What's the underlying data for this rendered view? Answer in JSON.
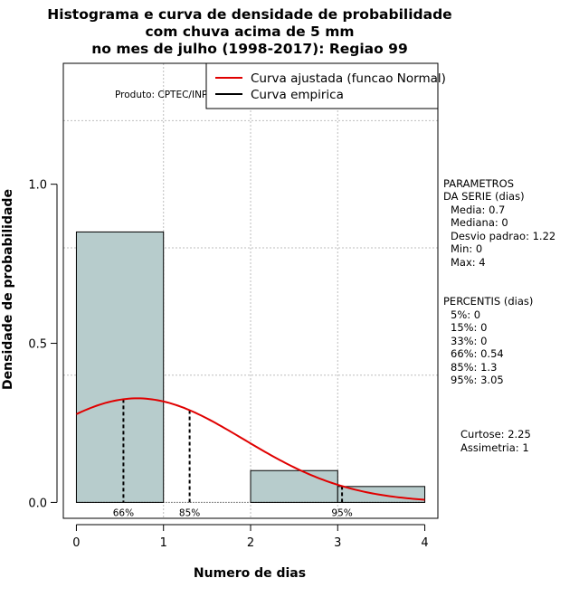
{
  "chart_data": {
    "type": "bar",
    "title": [
      "Histograma e curva de densidade de probabilidade",
      "com chuva acima de 5 mm",
      "no mes de julho (1998-2017): Regiao 99"
    ],
    "xlabel": "Numero de dias",
    "ylabel": "Densidade de probabilidade",
    "xlim": [
      -0.15,
      4.15
    ],
    "ylim": [
      -0.05,
      1.38
    ],
    "x_ticks": [
      0,
      1,
      2,
      3,
      4
    ],
    "x_tick_labels": [
      "0",
      "1",
      "2",
      "3",
      "4"
    ],
    "y_ticks": [
      0.0,
      0.5,
      1.0
    ],
    "y_tick_labels": [
      "0.0",
      "0.5",
      "1.0"
    ],
    "grid_x": [
      1,
      2,
      3
    ],
    "grid_y": [
      0.4,
      0.8,
      1.2
    ],
    "bars": [
      {
        "x0": 0,
        "x1": 1,
        "height": 0.85
      },
      {
        "x0": 1,
        "x1": 2,
        "height": 0.0
      },
      {
        "x0": 2,
        "x1": 3,
        "height": 0.1
      },
      {
        "x0": 3,
        "x1": 4,
        "height": 0.05
      }
    ],
    "bar_color": "#b7cccc",
    "fitted_curve": {
      "name": "Curva ajustada (funcao Normal)",
      "color": "#e00000",
      "mean": 0.7,
      "sd": 1.22,
      "x_range": [
        0,
        4
      ]
    },
    "empirical_curve": {
      "name": "Curva empirica",
      "color": "#000000"
    },
    "percentile_markers": [
      {
        "x": 0.54,
        "label": "66%"
      },
      {
        "x": 1.3,
        "label": "85%"
      },
      {
        "x": 3.05,
        "label": "95%"
      }
    ],
    "legend": {
      "placement": "top-right",
      "entries": [
        {
          "label": "Curva ajustada (funcao Normal)",
          "color": "#e00000"
        },
        {
          "label": "Curva empirica",
          "color": "#000000"
        }
      ]
    },
    "product_label": "Produto: CPTEC/INPE"
  },
  "side_panel": {
    "parametros_title": [
      "PARAMETROS",
      "DA SERIE (dias)"
    ],
    "parametros": [
      "Media: 0.7",
      "Mediana: 0",
      "Desvio padrao: 1.22",
      "Min: 0",
      "Max: 4"
    ],
    "percentis_title": "PERCENTIS (dias)",
    "percentis": [
      "5%: 0",
      "15%: 0",
      "33%: 0",
      "66%: 0.54",
      "85%: 1.3",
      "95%: 3.05"
    ],
    "curtose": "Curtose: 2.25",
    "assimetria": "Assimetria: 1"
  }
}
